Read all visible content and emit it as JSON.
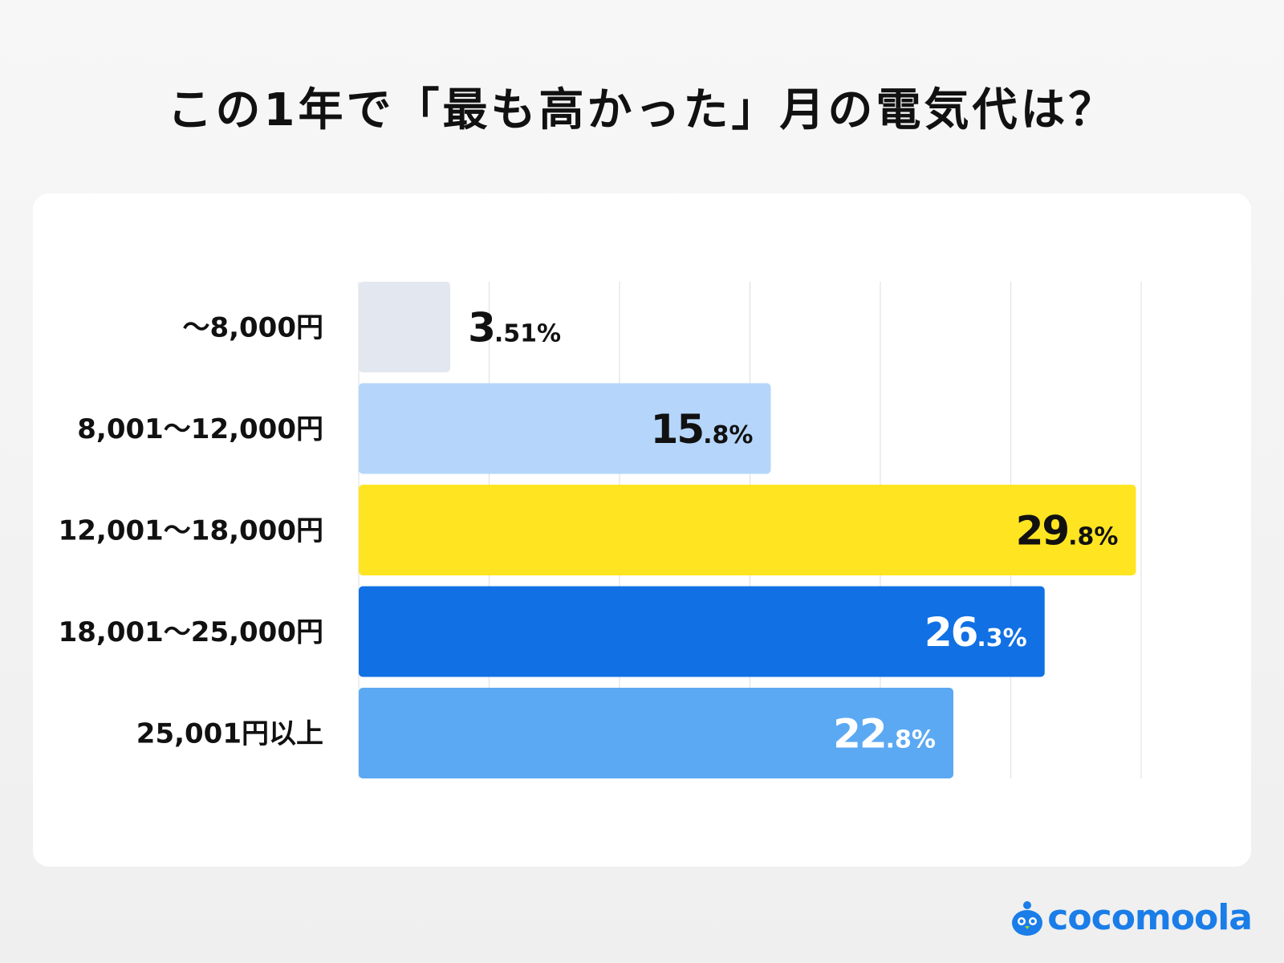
{
  "chart_data": {
    "type": "bar",
    "orientation": "horizontal",
    "title": "この1年で「最も高かった」月の電気代は？",
    "categories": [
      "～8,000円",
      "8,001～12,000円",
      "12,001～18,000円",
      "18,001～25,000円",
      "25,001円以上"
    ],
    "values": [
      3.51,
      15.8,
      29.8,
      26.3,
      22.8
    ],
    "value_labels": [
      {
        "int": "3",
        "rest": ".51%"
      },
      {
        "int": "15",
        "rest": ".8%"
      },
      {
        "int": "29",
        "rest": ".8%"
      },
      {
        "int": "26",
        "rest": ".3%"
      },
      {
        "int": "22",
        "rest": ".8%"
      }
    ],
    "colors": [
      "#e3e7ef",
      "#b5d6fa",
      "#ffe521",
      "#1170e4",
      "#5ba9f3"
    ],
    "label_colors": [
      "#111111",
      "#111111",
      "#111111",
      "#ffffff",
      "#ffffff"
    ],
    "xlim": [
      0,
      30
    ],
    "grid": true,
    "grid_step": 5,
    "xlabel": "",
    "ylabel": ""
  },
  "brand": {
    "name": "cocomoola",
    "color": "#1a7de8"
  }
}
